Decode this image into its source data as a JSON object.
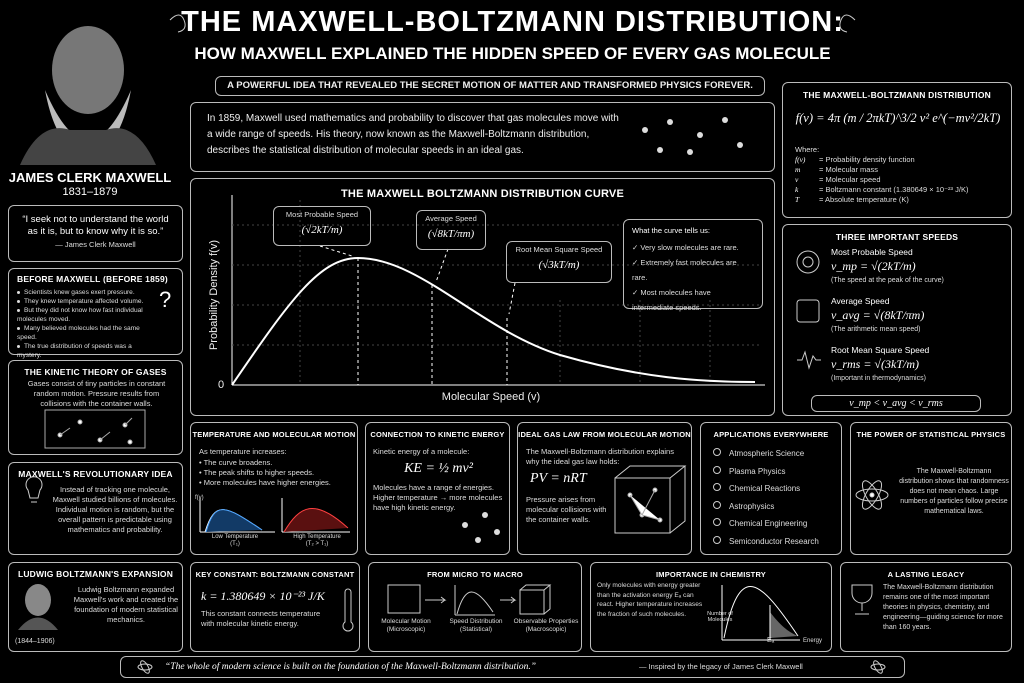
{
  "header": {
    "title": "THE MAXWELL-BOLTZMANN DISTRIBUTION:",
    "subtitle": "HOW MAXWELL EXPLAINED THE HIDDEN SPEED OF EVERY GAS MOLECULE",
    "tagline": "A POWERFUL IDEA THAT REVEALED THE SECRET MOTION OF MATTER AND TRANSFORMED PHYSICS FOREVER."
  },
  "portrait": {
    "name": "JAMES CLERK MAXWELL",
    "years": "1831–1879"
  },
  "intro": "In 1859, Maxwell used mathematics and probability to discover that gas molecules move with a wide range of speeds. His theory, now known as the Maxwell-Boltzmann distribution, describes the statistical distribution of molecular speeds in an ideal gas.",
  "quote": {
    "text": "“I seek not to understand the world as it is, but to know why it is so.”",
    "author": "— James Clerk Maxwell"
  },
  "before": {
    "title": "BEFORE MAXWELL (BEFORE 1859)",
    "items": [
      "Scientists knew gases exert pressure.",
      "They knew temperature affected volume.",
      "But they did not know how fast individual molecules moved.",
      "Many believed molecules had the same speed.",
      "The true distribution of speeds was a mystery."
    ],
    "mark": "?"
  },
  "kinetic": {
    "title": "THE KINETIC THEORY OF GASES",
    "text": "Gases consist of tiny particles in constant random motion. Pressure results from collisions with the container walls."
  },
  "revolution": {
    "title": "MAXWELL'S REVOLUTIONARY IDEA",
    "text": "Instead of tracking one molecule, Maxwell studied billions of molecules. Individual motion is random, but the overall pattern is predictable using mathematics and probability."
  },
  "ludwig": {
    "title": "LUDWIG BOLTZMANN'S EXPANSION",
    "text": "Ludwig Boltzmann expanded Maxwell's work and created the foundation of modern statistical mechanics.",
    "years": "(1844–1906)"
  },
  "curve": {
    "title": "THE MAXWELL BOLTZMANN DISTRIBUTION CURVE",
    "y_label": "Probability Density  f(v)",
    "x_label": "Molecular Speed  (v)",
    "origin": "0",
    "annotations": [
      {
        "label": "Most Probable Speed",
        "formula": "(√2kT/m)"
      },
      {
        "label": "Average Speed",
        "formula": "(√8kT/πm)"
      },
      {
        "label": "Root Mean Square Speed",
        "formula": "(√3kT/m)"
      }
    ],
    "notes": {
      "title": "What the curve tells us:",
      "items": [
        "✓ Very slow molecules are rare.",
        "✓ Extremely fast molecules are rare.",
        "✓ Most molecules have intermediate speeds."
      ]
    }
  },
  "formula": {
    "title": "THE MAXWELL-BOLTZMANN DISTRIBUTION",
    "equation": "f(v) = 4π (m / 2πkT)^3/2 v² e^(−mv²/2kT)",
    "where": "Where:",
    "definitions": [
      {
        "symbol": "f(v)",
        "meaning": "= Probability density function"
      },
      {
        "symbol": "m",
        "meaning": "= Molecular mass"
      },
      {
        "symbol": "v",
        "meaning": "= Molecular speed"
      },
      {
        "symbol": "k",
        "meaning": "= Boltzmann constant (1.380649 × 10⁻²³ J/K)"
      },
      {
        "symbol": "T",
        "meaning": "= Absolute temperature (K)"
      }
    ]
  },
  "speeds": {
    "title": "THREE IMPORTANT SPEEDS",
    "items": [
      {
        "name": "Most Probable Speed",
        "formula": "v_mp = √(2kT/m)",
        "note": "(The speed at the peak of the curve)"
      },
      {
        "name": "Average Speed",
        "formula": "v_avg = √(8kT/πm)",
        "note": "(The arithmetic mean speed)"
      },
      {
        "name": "Root Mean Square Speed",
        "formula": "v_rms = √(3kT/m)",
        "note": "(Important in thermodynamics)"
      }
    ],
    "inequality": "v_mp  <  v_avg  <  v_rms"
  },
  "temperature": {
    "title": "TEMPERATURE AND MOLECULAR MOTION",
    "intro": "As temperature increases:",
    "items": [
      "• The curve broadens.",
      "• The peak shifts to higher speeds.",
      "• More molecules have higher energies."
    ],
    "axis": "f(v)",
    "low": "Low Temperature",
    "low_sub": "(T₁)",
    "high": "High Temperature",
    "high_sub": "(T₂ > T₁)"
  },
  "kinetic_energy": {
    "title": "CONNECTION TO KINETIC ENERGY",
    "intro": "Kinetic energy of a molecule:",
    "equation": "KE = ½ mv²",
    "text": "Molecules have a range of energies. Higher temperature → more molecules have high kinetic energy."
  },
  "ideal_gas": {
    "title": "IDEAL GAS LAW FROM MOLECULAR MOTION",
    "intro": "The Maxwell-Boltzmann distribution explains why the ideal gas law holds:",
    "equation": "PV = nRT",
    "text": "Pressure arises from molecular collisions with the container walls."
  },
  "applications": {
    "title": "APPLICATIONS EVERYWHERE",
    "items": [
      "Atmospheric Science",
      "Plasma Physics",
      "Chemical Reactions",
      "Astrophysics",
      "Chemical Engineering",
      "Semiconductor Research"
    ]
  },
  "statistical": {
    "title": "THE POWER OF STATISTICAL PHYSICS",
    "text": "The Maxwell-Boltzmann distribution shows that randomness does not mean chaos. Large numbers of particles follow precise mathematical laws."
  },
  "constant": {
    "title": "KEY CONSTANT: BOLTZMANN CONSTANT",
    "equation": "k = 1.380649 × 10⁻²³ J/K",
    "text": "This constant connects temperature with molecular kinetic energy."
  },
  "micro_macro": {
    "title": "FROM MICRO TO MACRO",
    "steps": [
      {
        "label": "Molecular Motion",
        "sub": "(Microscopic)"
      },
      {
        "label": "Speed Distribution",
        "sub": "(Statistical)"
      },
      {
        "label": "Observable Properties",
        "sub": "(Macroscopic)"
      }
    ]
  },
  "chemistry": {
    "title": "IMPORTANCE IN CHEMISTRY",
    "text": "Only molecules with energy greater than the activation energy Eₐ can react. Higher temperature increases the fraction of such molecules.",
    "y_label": "Number of Molecules",
    "x_label": "Energy",
    "ea": "Eₐ"
  },
  "legacy": {
    "title": "A LASTING LEGACY",
    "text": "The Maxwell-Boltzmann distribution remains one of the most important theories in physics, chemistry, and engineering—guiding science for more than 160 years."
  },
  "footer": {
    "quote": "“The whole of modern science is built on the foundation of the Maxwell-Boltzmann distribution.”",
    "credit": "— Inspired by the legacy of James Clerk Maxwell"
  }
}
